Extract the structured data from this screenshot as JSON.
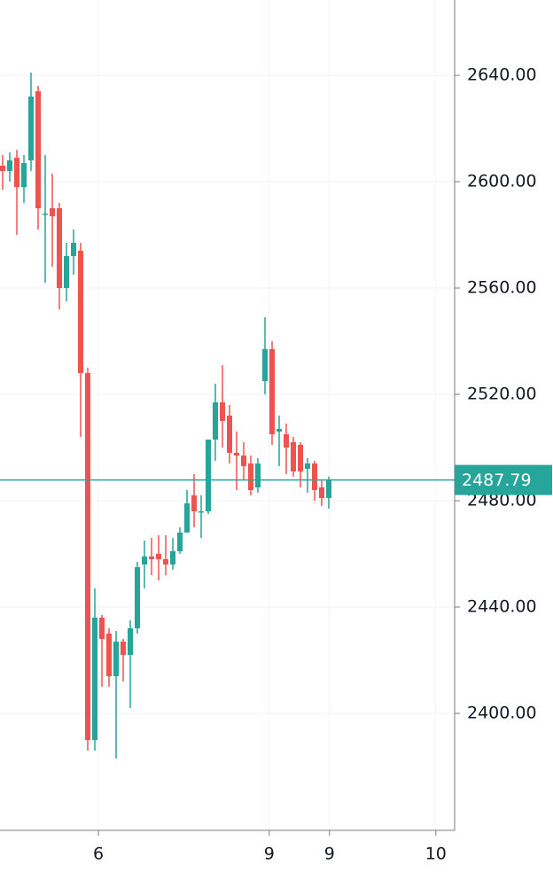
{
  "chart_data": {
    "type": "candlestick",
    "x": [
      0,
      1,
      2,
      3,
      4,
      5,
      6,
      7,
      8,
      9,
      10,
      11,
      12,
      13,
      14,
      15,
      16,
      17,
      18,
      19,
      20,
      21,
      22,
      23,
      24,
      25,
      26,
      27,
      28,
      29,
      30,
      31,
      32,
      33,
      34,
      35,
      36,
      37,
      38,
      39,
      40,
      41,
      42,
      43,
      44,
      45,
      46
    ],
    "open": [
      2606,
      2604,
      2609,
      2598,
      2608,
      2634,
      2588,
      2590,
      2590,
      2560,
      2572,
      2574,
      2528,
      2390,
      2436,
      2430,
      2414,
      2427,
      2422,
      2432,
      2456,
      2459,
      2460,
      2458,
      2456,
      2461,
      2468,
      2482,
      2476,
      2476,
      2503,
      2517,
      2512,
      2498,
      2497,
      2494,
      2485,
      2525,
      2537,
      2506,
      2505,
      2502,
      2501,
      2492,
      2494,
      2485,
      2481
    ],
    "high": [
      2610,
      2611,
      2612,
      2610,
      2641,
      2636,
      2610,
      2603,
      2592,
      2577,
      2582,
      2577,
      2530,
      2447,
      2437,
      2432,
      2431,
      2428,
      2435,
      2457,
      2465,
      2466,
      2467,
      2467,
      2466,
      2470,
      2484,
      2490,
      2482,
      2503,
      2524,
      2531,
      2516,
      2506,
      2502,
      2497,
      2496,
      2549,
      2540,
      2512,
      2509,
      2504,
      2502,
      2496,
      2495,
      2488,
      2489
    ],
    "low": [
      2597,
      2600,
      2580,
      2592,
      2604,
      2582,
      2562,
      2568,
      2552,
      2555,
      2565,
      2504,
      2386,
      2386,
      2410,
      2410,
      2383,
      2412,
      2402,
      2430,
      2447,
      2452,
      2450,
      2452,
      2454,
      2460,
      2468,
      2470,
      2466,
      2475,
      2495,
      2500,
      2494,
      2484,
      2488,
      2482,
      2483,
      2520,
      2501,
      2493,
      2490,
      2489,
      2485,
      2483,
      2480,
      2478,
      2477
    ],
    "close": [
      2604,
      2608,
      2598,
      2607,
      2632,
      2590,
      2588,
      2587,
      2560,
      2572,
      2577,
      2528,
      2390,
      2436,
      2428,
      2414,
      2427,
      2422,
      2432,
      2455,
      2459,
      2458,
      2458,
      2456,
      2461,
      2468,
      2479,
      2476,
      2476,
      2503,
      2517,
      2510,
      2498,
      2497,
      2493,
      2484,
      2494,
      2537,
      2505,
      2507,
      2500,
      2491,
      2491,
      2494,
      2484,
      2481,
      2487.79
    ],
    "up_color": "#26a69a",
    "down_color": "#ef5350",
    "last_price": 2487.79,
    "xlim": [
      -0.375,
      63.75
    ],
    "xticks": [
      {
        "value": 13.5,
        "label": "6"
      },
      {
        "value": 37.6,
        "label": "9"
      },
      {
        "value": 46.1,
        "label": "9"
      },
      {
        "value": 61.1,
        "label": "10"
      }
    ],
    "ylim": [
      2356,
      2668.33
    ],
    "yticks": [
      {
        "value": 2400,
        "label": "2400.00"
      },
      {
        "value": 2440,
        "label": "2440.00"
      },
      {
        "value": 2480,
        "label": "2480.00"
      },
      {
        "value": 2520,
        "label": "2520.00"
      },
      {
        "value": 2560,
        "label": "2560.00"
      },
      {
        "value": 2600,
        "label": "2600.00"
      },
      {
        "value": 2640,
        "label": "2640.00"
      }
    ],
    "grid": true
  }
}
